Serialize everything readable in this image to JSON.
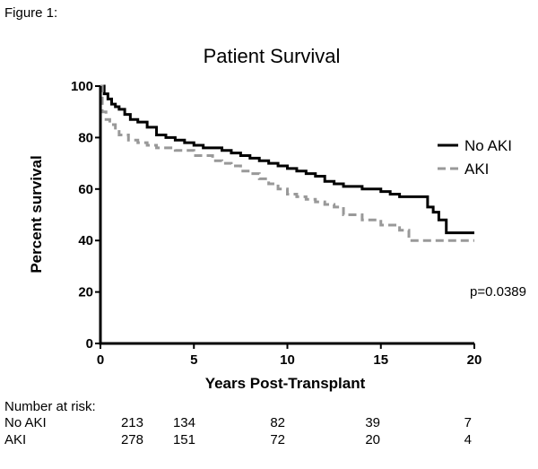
{
  "figure_label": "Figure 1:",
  "risk_table": {
    "title": "Number at risk:",
    "rows": [
      {
        "label": "No AKI",
        "values": [
          "213",
          "134",
          "82",
          "39",
          "7"
        ]
      },
      {
        "label": "AKI",
        "values": [
          "278",
          "151",
          "72",
          "20",
          "4"
        ]
      }
    ]
  },
  "chart_data": {
    "type": "line",
    "title": "Patient Survival",
    "xlabel": "Years Post-Transplant",
    "ylabel": "Percent survival",
    "xlim": [
      0,
      20
    ],
    "ylim": [
      0,
      100
    ],
    "xticks": [
      0,
      5,
      10,
      15,
      20
    ],
    "yticks": [
      0,
      20,
      40,
      60,
      80,
      100
    ],
    "grid": false,
    "legend_position": "right",
    "annotation": "p=0.0389",
    "series": [
      {
        "name": "No AKI",
        "color": "#000000",
        "style": "solid step",
        "x": [
          0,
          0.2,
          0.4,
          0.6,
          0.8,
          1.0,
          1.3,
          1.6,
          2.0,
          2.5,
          3.0,
          3.5,
          4.0,
          4.5,
          5.0,
          5.5,
          6.0,
          6.5,
          7.0,
          7.5,
          8.0,
          8.5,
          9.0,
          9.5,
          10.0,
          10.5,
          11.0,
          11.5,
          12.0,
          12.5,
          13.0,
          14.0,
          15.0,
          15.5,
          16.0,
          17.5,
          17.8,
          18.1,
          18.5,
          20.0
        ],
        "y": [
          100,
          97,
          95,
          93,
          92,
          91,
          89,
          87,
          86,
          84,
          81,
          80,
          79,
          78,
          77,
          76,
          76,
          75,
          74,
          73,
          72,
          71,
          70,
          69,
          68,
          67,
          66,
          65,
          63,
          62,
          61,
          60,
          59,
          58,
          57,
          53,
          51,
          48,
          43,
          43
        ]
      },
      {
        "name": "AKI",
        "color": "#999999",
        "style": "dashed step",
        "x": [
          0,
          0.1,
          0.3,
          0.5,
          0.8,
          1.0,
          1.5,
          2.0,
          2.5,
          3.0,
          4.0,
          5.0,
          6.0,
          6.5,
          7.0,
          7.5,
          8.0,
          8.5,
          9.0,
          9.5,
          10.0,
          10.5,
          11.0,
          11.5,
          12.0,
          12.5,
          13.0,
          14.0,
          15.0,
          16.0,
          16.5,
          20.0
        ],
        "y": [
          100,
          90,
          87,
          85,
          83,
          81,
          79,
          78,
          77,
          76,
          75,
          73,
          71,
          70,
          69,
          67,
          66,
          64,
          62,
          60,
          58,
          57,
          56,
          55,
          54,
          53,
          50,
          48,
          46,
          44,
          40,
          40
        ]
      }
    ]
  }
}
